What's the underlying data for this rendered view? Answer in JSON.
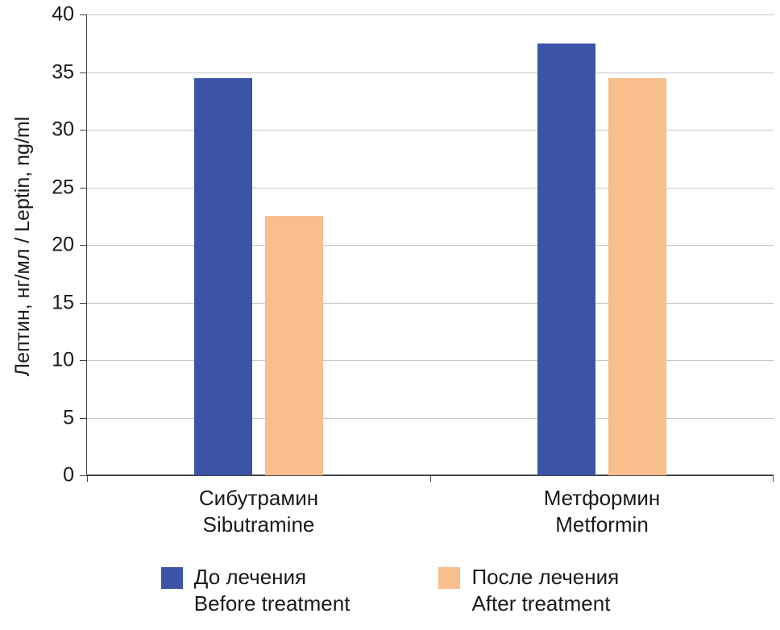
{
  "chart_data": {
    "type": "bar",
    "title": "",
    "xlabel": "",
    "ylabel": "Лептин, нг/мл / Leptin, ng/ml",
    "ylim": [
      0,
      40
    ],
    "yticks": [
      0,
      5,
      10,
      15,
      20,
      25,
      30,
      35,
      40
    ],
    "grid": true,
    "legend_position": "bottom",
    "axis_color": "#444444",
    "gridline_color": "#c6c6c6",
    "categories": [
      {
        "label_ru": "Сибутрамин",
        "label_en": "Sibutramine"
      },
      {
        "label_ru": "Метформин",
        "label_en": "Metformin"
      }
    ],
    "series": [
      {
        "name_ru": "До лечения",
        "name_en": "Before treatment",
        "color": "#3b54a5",
        "values": [
          34.5,
          37.5
        ]
      },
      {
        "name_ru": "После лечения",
        "name_en": "After treatment",
        "color": "#f8be8c",
        "values": [
          22.5,
          34.5
        ]
      }
    ]
  }
}
